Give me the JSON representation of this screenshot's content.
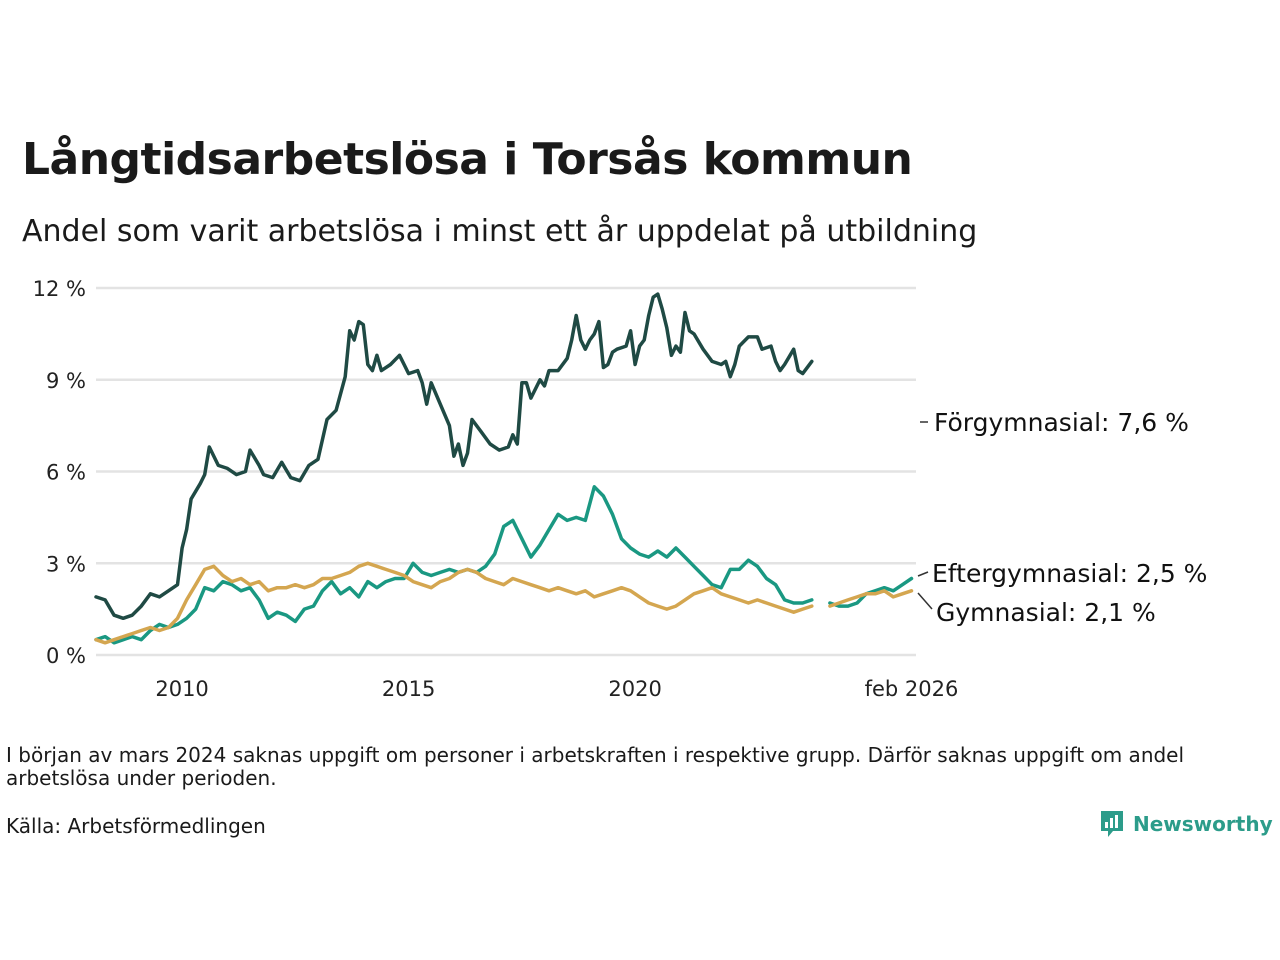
{
  "title": "Långtidsarbetslösa i Torsås kommun",
  "subtitle": "Andel som varit arbetslösa i minst ett år uppdelat på utbildning",
  "note": "I början av mars 2024 saknas uppgift om personer i arbetskraften i respektive grupp. Därför saknas uppgift om andel arbetslösa under perioden.",
  "source": "Källa: Arbetsförmedlingen",
  "logo_text": "Newsworthy",
  "chart_data": {
    "type": "line",
    "title": "Långtidsarbetslösa i Torsås kommun",
    "xlabel": "",
    "ylabel": "",
    "ylim": [
      0,
      12
    ],
    "y_ticks": [
      0,
      3,
      6,
      9,
      12
    ],
    "y_tick_labels": [
      "0 %",
      "3 %",
      "6 %",
      "9 %",
      "12 %"
    ],
    "xlim": [
      2008.1,
      2026.2
    ],
    "x_ticks": [
      2010,
      2015,
      2020,
      2026.1
    ],
    "x_tick_labels": [
      "2010",
      "2015",
      "2020",
      "feb 2026"
    ],
    "grid": true,
    "gap": [
      2023.9,
      2024.3
    ],
    "series": [
      {
        "name": "Förgymnasial",
        "label": "Förgymnasial: 7,6 %",
        "color": "#1f4a44",
        "points": [
          [
            2008.1,
            1.9
          ],
          [
            2008.3,
            1.8
          ],
          [
            2008.5,
            1.3
          ],
          [
            2008.7,
            1.2
          ],
          [
            2008.9,
            1.3
          ],
          [
            2009.1,
            1.6
          ],
          [
            2009.3,
            2.0
          ],
          [
            2009.5,
            1.9
          ],
          [
            2009.7,
            2.1
          ],
          [
            2009.9,
            2.3
          ],
          [
            2010.0,
            3.5
          ],
          [
            2010.1,
            4.1
          ],
          [
            2010.2,
            5.1
          ],
          [
            2010.4,
            5.6
          ],
          [
            2010.5,
            5.9
          ],
          [
            2010.6,
            6.8
          ],
          [
            2010.8,
            6.2
          ],
          [
            2011.0,
            6.1
          ],
          [
            2011.2,
            5.9
          ],
          [
            2011.4,
            6.0
          ],
          [
            2011.5,
            6.7
          ],
          [
            2011.7,
            6.2
          ],
          [
            2011.8,
            5.9
          ],
          [
            2012.0,
            5.8
          ],
          [
            2012.2,
            6.3
          ],
          [
            2012.4,
            5.8
          ],
          [
            2012.6,
            5.7
          ],
          [
            2012.8,
            6.2
          ],
          [
            2013.0,
            6.4
          ],
          [
            2013.2,
            7.7
          ],
          [
            2013.4,
            8.0
          ],
          [
            2013.6,
            9.1
          ],
          [
            2013.7,
            10.6
          ],
          [
            2013.8,
            10.3
          ],
          [
            2013.9,
            10.9
          ],
          [
            2014.0,
            10.8
          ],
          [
            2014.1,
            9.5
          ],
          [
            2014.2,
            9.3
          ],
          [
            2014.3,
            9.8
          ],
          [
            2014.4,
            9.3
          ],
          [
            2014.6,
            9.5
          ],
          [
            2014.8,
            9.8
          ],
          [
            2014.9,
            9.5
          ],
          [
            2015.0,
            9.2
          ],
          [
            2015.2,
            9.3
          ],
          [
            2015.3,
            8.9
          ],
          [
            2015.4,
            8.2
          ],
          [
            2015.5,
            8.9
          ],
          [
            2015.7,
            8.2
          ],
          [
            2015.9,
            7.5
          ],
          [
            2016.0,
            6.5
          ],
          [
            2016.1,
            6.9
          ],
          [
            2016.2,
            6.2
          ],
          [
            2016.3,
            6.6
          ],
          [
            2016.4,
            7.7
          ],
          [
            2016.6,
            7.3
          ],
          [
            2016.8,
            6.9
          ],
          [
            2017.0,
            6.7
          ],
          [
            2017.2,
            6.8
          ],
          [
            2017.3,
            7.2
          ],
          [
            2017.4,
            6.9
          ],
          [
            2017.5,
            8.9
          ],
          [
            2017.6,
            8.9
          ],
          [
            2017.7,
            8.4
          ],
          [
            2017.9,
            9.0
          ],
          [
            2018.0,
            8.8
          ],
          [
            2018.1,
            9.3
          ],
          [
            2018.3,
            9.3
          ],
          [
            2018.5,
            9.7
          ],
          [
            2018.6,
            10.3
          ],
          [
            2018.7,
            11.1
          ],
          [
            2018.8,
            10.3
          ],
          [
            2018.9,
            10.0
          ],
          [
            2019.0,
            10.3
          ],
          [
            2019.1,
            10.5
          ],
          [
            2019.2,
            10.9
          ],
          [
            2019.3,
            9.4
          ],
          [
            2019.4,
            9.5
          ],
          [
            2019.5,
            9.9
          ],
          [
            2019.6,
            10.0
          ],
          [
            2019.8,
            10.1
          ],
          [
            2019.9,
            10.6
          ],
          [
            2020.0,
            9.5
          ],
          [
            2020.1,
            10.1
          ],
          [
            2020.2,
            10.3
          ],
          [
            2020.3,
            11.1
          ],
          [
            2020.4,
            11.7
          ],
          [
            2020.5,
            11.8
          ],
          [
            2020.6,
            11.3
          ],
          [
            2020.7,
            10.7
          ],
          [
            2020.8,
            9.8
          ],
          [
            2020.9,
            10.1
          ],
          [
            2021.0,
            9.9
          ],
          [
            2021.1,
            11.2
          ],
          [
            2021.2,
            10.6
          ],
          [
            2021.3,
            10.5
          ],
          [
            2021.5,
            10.0
          ],
          [
            2021.7,
            9.6
          ],
          [
            2021.9,
            9.5
          ],
          [
            2022.0,
            9.6
          ],
          [
            2022.1,
            9.1
          ],
          [
            2022.2,
            9.5
          ],
          [
            2022.3,
            10.1
          ],
          [
            2022.5,
            10.4
          ],
          [
            2022.7,
            10.4
          ],
          [
            2022.8,
            10.0
          ],
          [
            2023.0,
            10.1
          ],
          [
            2023.1,
            9.6
          ],
          [
            2023.2,
            9.3
          ],
          [
            2023.3,
            9.5
          ],
          [
            2023.5,
            10.0
          ],
          [
            2023.6,
            9.3
          ],
          [
            2023.7,
            9.2
          ],
          [
            2023.9,
            9.6
          ]
        ]
      },
      {
        "name": "Eftergymnasial",
        "label": "Eftergymnasial: 2,5 %",
        "color": "#1a9882",
        "points": [
          [
            2008.1,
            0.5
          ],
          [
            2008.3,
            0.6
          ],
          [
            2008.5,
            0.4
          ],
          [
            2008.7,
            0.5
          ],
          [
            2008.9,
            0.6
          ],
          [
            2009.1,
            0.5
          ],
          [
            2009.3,
            0.8
          ],
          [
            2009.5,
            1.0
          ],
          [
            2009.7,
            0.9
          ],
          [
            2009.9,
            1.0
          ],
          [
            2010.1,
            1.2
          ],
          [
            2010.3,
            1.5
          ],
          [
            2010.5,
            2.2
          ],
          [
            2010.7,
            2.1
          ],
          [
            2010.9,
            2.4
          ],
          [
            2011.1,
            2.3
          ],
          [
            2011.3,
            2.1
          ],
          [
            2011.5,
            2.2
          ],
          [
            2011.7,
            1.8
          ],
          [
            2011.9,
            1.2
          ],
          [
            2012.1,
            1.4
          ],
          [
            2012.3,
            1.3
          ],
          [
            2012.5,
            1.1
          ],
          [
            2012.7,
            1.5
          ],
          [
            2012.9,
            1.6
          ],
          [
            2013.1,
            2.1
          ],
          [
            2013.3,
            2.4
          ],
          [
            2013.5,
            2.0
          ],
          [
            2013.7,
            2.2
          ],
          [
            2013.9,
            1.9
          ],
          [
            2014.1,
            2.4
          ],
          [
            2014.3,
            2.2
          ],
          [
            2014.5,
            2.4
          ],
          [
            2014.7,
            2.5
          ],
          [
            2014.9,
            2.5
          ],
          [
            2015.1,
            3.0
          ],
          [
            2015.3,
            2.7
          ],
          [
            2015.5,
            2.6
          ],
          [
            2015.7,
            2.7
          ],
          [
            2015.9,
            2.8
          ],
          [
            2016.1,
            2.7
          ],
          [
            2016.3,
            2.8
          ],
          [
            2016.5,
            2.7
          ],
          [
            2016.7,
            2.9
          ],
          [
            2016.9,
            3.3
          ],
          [
            2017.1,
            4.2
          ],
          [
            2017.3,
            4.4
          ],
          [
            2017.5,
            3.8
          ],
          [
            2017.7,
            3.2
          ],
          [
            2017.9,
            3.6
          ],
          [
            2018.1,
            4.1
          ],
          [
            2018.3,
            4.6
          ],
          [
            2018.5,
            4.4
          ],
          [
            2018.7,
            4.5
          ],
          [
            2018.9,
            4.4
          ],
          [
            2019.1,
            5.5
          ],
          [
            2019.3,
            5.2
          ],
          [
            2019.5,
            4.6
          ],
          [
            2019.7,
            3.8
          ],
          [
            2019.9,
            3.5
          ],
          [
            2020.1,
            3.3
          ],
          [
            2020.3,
            3.2
          ],
          [
            2020.5,
            3.4
          ],
          [
            2020.7,
            3.2
          ],
          [
            2020.9,
            3.5
          ],
          [
            2021.1,
            3.2
          ],
          [
            2021.3,
            2.9
          ],
          [
            2021.5,
            2.6
          ],
          [
            2021.7,
            2.3
          ],
          [
            2021.9,
            2.2
          ],
          [
            2022.1,
            2.8
          ],
          [
            2022.3,
            2.8
          ],
          [
            2022.5,
            3.1
          ],
          [
            2022.7,
            2.9
          ],
          [
            2022.9,
            2.5
          ],
          [
            2023.1,
            2.3
          ],
          [
            2023.3,
            1.8
          ],
          [
            2023.5,
            1.7
          ],
          [
            2023.7,
            1.7
          ],
          [
            2023.9,
            1.8
          ],
          [
            2024.3,
            1.7
          ],
          [
            2024.5,
            1.6
          ],
          [
            2024.7,
            1.6
          ],
          [
            2024.9,
            1.7
          ],
          [
            2025.1,
            2.0
          ],
          [
            2025.3,
            2.1
          ],
          [
            2025.5,
            2.2
          ],
          [
            2025.7,
            2.1
          ],
          [
            2025.9,
            2.3
          ],
          [
            2026.1,
            2.5
          ]
        ]
      },
      {
        "name": "Gymnasial",
        "label": "Gymnasial: 2,1 %",
        "color": "#d4a650",
        "points": [
          [
            2008.1,
            0.5
          ],
          [
            2008.3,
            0.4
          ],
          [
            2008.5,
            0.5
          ],
          [
            2008.7,
            0.6
          ],
          [
            2008.9,
            0.7
          ],
          [
            2009.1,
            0.8
          ],
          [
            2009.3,
            0.9
          ],
          [
            2009.5,
            0.8
          ],
          [
            2009.7,
            0.9
          ],
          [
            2009.9,
            1.2
          ],
          [
            2010.1,
            1.8
          ],
          [
            2010.3,
            2.3
          ],
          [
            2010.5,
            2.8
          ],
          [
            2010.7,
            2.9
          ],
          [
            2010.9,
            2.6
          ],
          [
            2011.1,
            2.4
          ],
          [
            2011.3,
            2.5
          ],
          [
            2011.5,
            2.3
          ],
          [
            2011.7,
            2.4
          ],
          [
            2011.9,
            2.1
          ],
          [
            2012.1,
            2.2
          ],
          [
            2012.3,
            2.2
          ],
          [
            2012.5,
            2.3
          ],
          [
            2012.7,
            2.2
          ],
          [
            2012.9,
            2.3
          ],
          [
            2013.1,
            2.5
          ],
          [
            2013.3,
            2.5
          ],
          [
            2013.5,
            2.6
          ],
          [
            2013.7,
            2.7
          ],
          [
            2013.9,
            2.9
          ],
          [
            2014.1,
            3.0
          ],
          [
            2014.3,
            2.9
          ],
          [
            2014.5,
            2.8
          ],
          [
            2014.7,
            2.7
          ],
          [
            2014.9,
            2.6
          ],
          [
            2015.1,
            2.4
          ],
          [
            2015.3,
            2.3
          ],
          [
            2015.5,
            2.2
          ],
          [
            2015.7,
            2.4
          ],
          [
            2015.9,
            2.5
          ],
          [
            2016.1,
            2.7
          ],
          [
            2016.3,
            2.8
          ],
          [
            2016.5,
            2.7
          ],
          [
            2016.7,
            2.5
          ],
          [
            2016.9,
            2.4
          ],
          [
            2017.1,
            2.3
          ],
          [
            2017.3,
            2.5
          ],
          [
            2017.5,
            2.4
          ],
          [
            2017.7,
            2.3
          ],
          [
            2017.9,
            2.2
          ],
          [
            2018.1,
            2.1
          ],
          [
            2018.3,
            2.2
          ],
          [
            2018.5,
            2.1
          ],
          [
            2018.7,
            2.0
          ],
          [
            2018.9,
            2.1
          ],
          [
            2019.1,
            1.9
          ],
          [
            2019.3,
            2.0
          ],
          [
            2019.5,
            2.1
          ],
          [
            2019.7,
            2.2
          ],
          [
            2019.9,
            2.1
          ],
          [
            2020.1,
            1.9
          ],
          [
            2020.3,
            1.7
          ],
          [
            2020.5,
            1.6
          ],
          [
            2020.7,
            1.5
          ],
          [
            2020.9,
            1.6
          ],
          [
            2021.1,
            1.8
          ],
          [
            2021.3,
            2.0
          ],
          [
            2021.5,
            2.1
          ],
          [
            2021.7,
            2.2
          ],
          [
            2021.9,
            2.0
          ],
          [
            2022.1,
            1.9
          ],
          [
            2022.3,
            1.8
          ],
          [
            2022.5,
            1.7
          ],
          [
            2022.7,
            1.8
          ],
          [
            2022.9,
            1.7
          ],
          [
            2023.1,
            1.6
          ],
          [
            2023.3,
            1.5
          ],
          [
            2023.5,
            1.4
          ],
          [
            2023.7,
            1.5
          ],
          [
            2023.9,
            1.6
          ],
          [
            2024.3,
            1.6
          ],
          [
            2024.5,
            1.7
          ],
          [
            2024.7,
            1.8
          ],
          [
            2024.9,
            1.9
          ],
          [
            2025.1,
            2.0
          ],
          [
            2025.3,
            2.0
          ],
          [
            2025.5,
            2.1
          ],
          [
            2025.7,
            1.9
          ],
          [
            2025.9,
            2.0
          ],
          [
            2026.1,
            2.1
          ]
        ]
      }
    ]
  }
}
